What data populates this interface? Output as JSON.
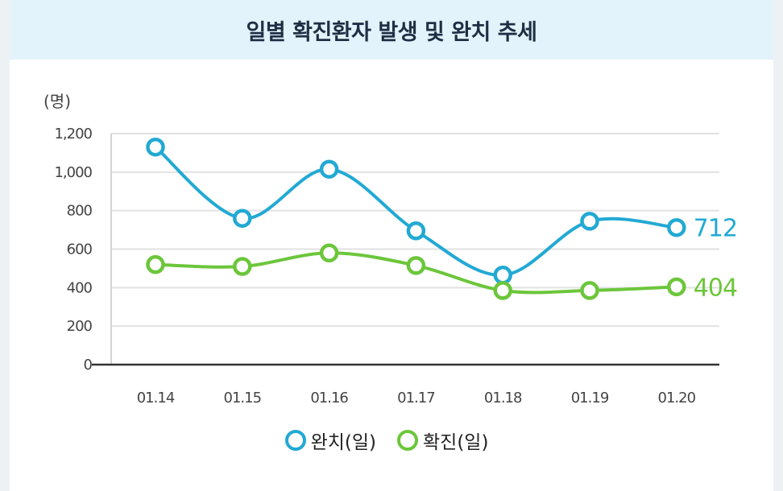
{
  "page": {
    "title": "일별 확진환자 발생 및 완치 추세"
  },
  "chart_data": {
    "type": "line",
    "title": "일별 확진환자 발생 및 완치 추세",
    "ylabel": "(명)",
    "xlabel": "",
    "categories": [
      "01.14",
      "01.15",
      "01.16",
      "01.17",
      "01.18",
      "01.19",
      "01.20"
    ],
    "ylim": [
      0,
      1200
    ],
    "yticks": [
      "0",
      "200",
      "400",
      "600",
      "800",
      "1,000",
      "1,200"
    ],
    "grid": true,
    "legend_position": "bottom",
    "series": [
      {
        "name": "완치(일)",
        "color": "#22a9d4",
        "values": [
          1130,
          760,
          1015,
          695,
          465,
          745,
          712
        ],
        "end_label": "712"
      },
      {
        "name": "확진(일)",
        "color": "#6cc63b",
        "values": [
          520,
          510,
          580,
          515,
          385,
          385,
          404
        ],
        "end_label": "404"
      }
    ]
  }
}
